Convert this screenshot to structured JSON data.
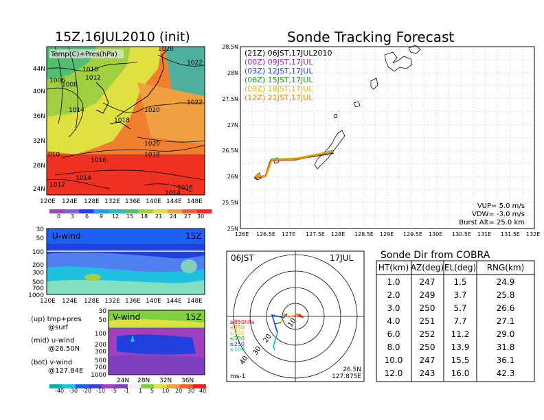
{
  "map_panel": {
    "title": "15Z,16JUL2010 (init)",
    "inner_label": "Temp(C)+Pres(hPa)",
    "x_ticks": [
      "120E",
      "124E",
      "128E",
      "132E",
      "136E",
      "140E",
      "144E",
      "148E"
    ],
    "y_ticks": [
      "44N",
      "40N",
      "36N",
      "32N",
      "28N",
      "24N"
    ],
    "isobar_labels": [
      "1020",
      "1022",
      "1010",
      "1006",
      "1008",
      "1012",
      "1014",
      "1020",
      "1022",
      "1018",
      "1020",
      "1018",
      "010",
      "1016",
      "1014",
      "1012",
      "1016",
      "1014"
    ],
    "colorbar_labels": [
      "0",
      "3",
      "6",
      "9",
      "12",
      "15",
      "18",
      "21",
      "24",
      "27",
      "30"
    ]
  },
  "uwind_panel": {
    "label": "U-wind",
    "time": "15Z",
    "y_ticks": [
      "30",
      "50",
      "100",
      "200",
      "300",
      "500",
      "700",
      "1000"
    ],
    "x_ticks": [
      "120E",
      "124E",
      "128E",
      "132E",
      "136E",
      "140E",
      "144E",
      "148E"
    ]
  },
  "notes": {
    "line1": "(up) tmp+pres",
    "line2": "@surf",
    "line3": "(mid) u-wind",
    "line4": "@26.50N",
    "line5": "(bot) v-wind",
    "line6": "@127.84E"
  },
  "vwind_panel": {
    "label": "V-wind",
    "time": "15Z",
    "y_ticks": [
      "30",
      "50",
      "100",
      "200",
      "300",
      "500",
      "700",
      "1000"
    ],
    "x_ticks": [
      "24N",
      "28N",
      "32N",
      "36N"
    ],
    "colorbar_labels": [
      "-40",
      "-30",
      "-20",
      "-10",
      "-5",
      "-1",
      "1",
      "5",
      "10",
      "20",
      "30",
      "40"
    ]
  },
  "tracking_panel": {
    "title": "Sonde Tracking Forecast",
    "legend": [
      {
        "text": "(21Z) 06JST,17JUL2010",
        "color": "#000000"
      },
      {
        "text": "(00Z) 09JST,17JUL",
        "color": "#a020c0"
      },
      {
        "text": "(03Z) 12JST,17JUL",
        "color": "#2040ff"
      },
      {
        "text": "(06Z) 15JST,17JUL",
        "color": "#00b000"
      },
      {
        "text": "(09Z) 18JST,17JUL",
        "color": "#d8c000"
      },
      {
        "text": "(12Z) 21JST,17JUL",
        "color": "#ff8000"
      }
    ],
    "x_ticks": [
      "126E",
      "126.5E",
      "127E",
      "127.5E",
      "128E",
      "128.5E",
      "129E",
      "129.5E",
      "130E",
      "130.5E",
      "131E",
      "131.5E",
      "132E"
    ],
    "y_ticks": [
      "28.5N",
      "28N",
      "27.5N",
      "27N",
      "26.5N",
      "26N",
      "25.5N",
      "25N"
    ],
    "params": {
      "vup": "VUP=  5.0  m/s",
      "vdw": "VDW= -3.0  m/s",
      "burst": "Burst Alt=  25.0  km"
    }
  },
  "polar_panel": {
    "time_label": "06JST",
    "date_label": "17JUL",
    "legend": [
      {
        "text": "≥850hPa",
        "color": "#ff0000"
      },
      {
        "text": "≤850",
        "color": "#ff8000"
      },
      {
        "text": "≤700",
        "color": "#d8c000"
      },
      {
        "text": "≤500",
        "color": "#00b000"
      },
      {
        "text": "≤250",
        "color": "#2040ff"
      },
      {
        "text": "≤100",
        "color": "#00c0c0"
      }
    ],
    "ring_labels": [
      "10",
      "20",
      "30",
      "40"
    ],
    "unit": "ms-1",
    "loc_lat": "26.5N",
    "loc_lon": "127.875E"
  },
  "cobra_table": {
    "title": "Sonde Dir from COBRA",
    "headers": [
      "HT(km)",
      "AZ(deg)",
      "EL(deg)",
      "RNG(km)"
    ],
    "rows": [
      [
        "1.0",
        "247",
        "1.5",
        "24.9"
      ],
      [
        "2.0",
        "249",
        "3.7",
        "25.8"
      ],
      [
        "3.0",
        "250",
        "5.7",
        "26.6"
      ],
      [
        "4.0",
        "251",
        "7.7",
        "27.1"
      ],
      [
        "6.0",
        "252",
        "11.2",
        "29.0"
      ],
      [
        "8.0",
        "250",
        "13.9",
        "31.8"
      ],
      [
        "10.0",
        "247",
        "15.5",
        "36.1"
      ],
      [
        "12.0",
        "243",
        "16.0",
        "42.3"
      ]
    ]
  },
  "chart_data": [
    {
      "type": "heatmap",
      "title": "15Z,16JUL2010 (init)",
      "variable": "Temp(C)+Pres(hPa)",
      "xlim": [
        "120E",
        "148E"
      ],
      "ylim": [
        "24N",
        "44N"
      ],
      "colorbar": [
        0,
        3,
        6,
        9,
        12,
        15,
        18,
        21,
        24,
        27,
        30
      ]
    },
    {
      "type": "heatmap",
      "variable": "U-wind",
      "time": "15Z",
      "xlim": [
        "120E",
        "148E"
      ],
      "ylim": [
        1000,
        30
      ]
    },
    {
      "type": "heatmap",
      "variable": "V-wind",
      "time": "15Z",
      "xlim": [
        "22N",
        "38N"
      ],
      "ylim": [
        1000,
        30
      ],
      "colorbar": [
        -40,
        -30,
        -20,
        -10,
        -5,
        -1,
        1,
        5,
        10,
        20,
        30,
        40
      ]
    },
    {
      "type": "line",
      "title": "Sonde Tracking Forecast",
      "xlim": [
        126,
        132
      ],
      "ylim": [
        25,
        28.5
      ],
      "series": [
        {
          "name": "(21Z) 06JST,17JUL2010",
          "color": "#000000",
          "x": [
            126.32,
            126.5,
            126.62,
            127.1,
            127.9
          ],
          "y": [
            25.98,
            26.0,
            26.32,
            26.33,
            26.45
          ]
        },
        {
          "name": "(00Z) 09JST,17JUL",
          "color": "#a020c0",
          "x": [
            126.33,
            126.5,
            126.63,
            127.12,
            127.88
          ],
          "y": [
            25.99,
            26.0,
            26.31,
            26.32,
            26.48
          ]
        },
        {
          "name": "(03Z) 12JST,17JUL",
          "color": "#2040ff",
          "x": [
            126.35,
            126.52,
            126.64,
            127.14,
            127.9
          ],
          "y": [
            26.0,
            26.01,
            26.33,
            26.34,
            26.5
          ]
        },
        {
          "name": "(06Z) 15JST,17JUL",
          "color": "#00b000",
          "x": [
            126.34,
            126.51,
            126.64,
            127.13,
            127.86
          ],
          "y": [
            26.0,
            26.02,
            26.34,
            26.35,
            26.47
          ]
        },
        {
          "name": "(09Z) 18JST,17JUL",
          "color": "#d8c000",
          "x": [
            126.36,
            126.53,
            126.65,
            127.15,
            127.9
          ],
          "y": [
            26.01,
            26.02,
            26.33,
            26.36,
            26.49
          ]
        },
        {
          "name": "(12Z) 21JST,17JUL",
          "color": "#ff8000",
          "x": [
            126.33,
            126.5,
            126.63,
            127.1,
            127.85
          ],
          "y": [
            26.0,
            26.0,
            26.32,
            26.33,
            26.46
          ]
        }
      ]
    },
    {
      "type": "table",
      "title": "Sonde Dir from COBRA",
      "columns": [
        "HT(km)",
        "AZ(deg)",
        "EL(deg)",
        "RNG(km)"
      ],
      "rows": [
        [
          1.0,
          247,
          1.5,
          24.9
        ],
        [
          2.0,
          249,
          3.7,
          25.8
        ],
        [
          3.0,
          250,
          5.7,
          26.6
        ],
        [
          4.0,
          251,
          7.7,
          27.1
        ],
        [
          6.0,
          252,
          11.2,
          29.0
        ],
        [
          8.0,
          250,
          13.9,
          31.8
        ],
        [
          10.0,
          247,
          15.5,
          36.1
        ],
        [
          12.0,
          243,
          16.0,
          42.3
        ]
      ]
    }
  ]
}
